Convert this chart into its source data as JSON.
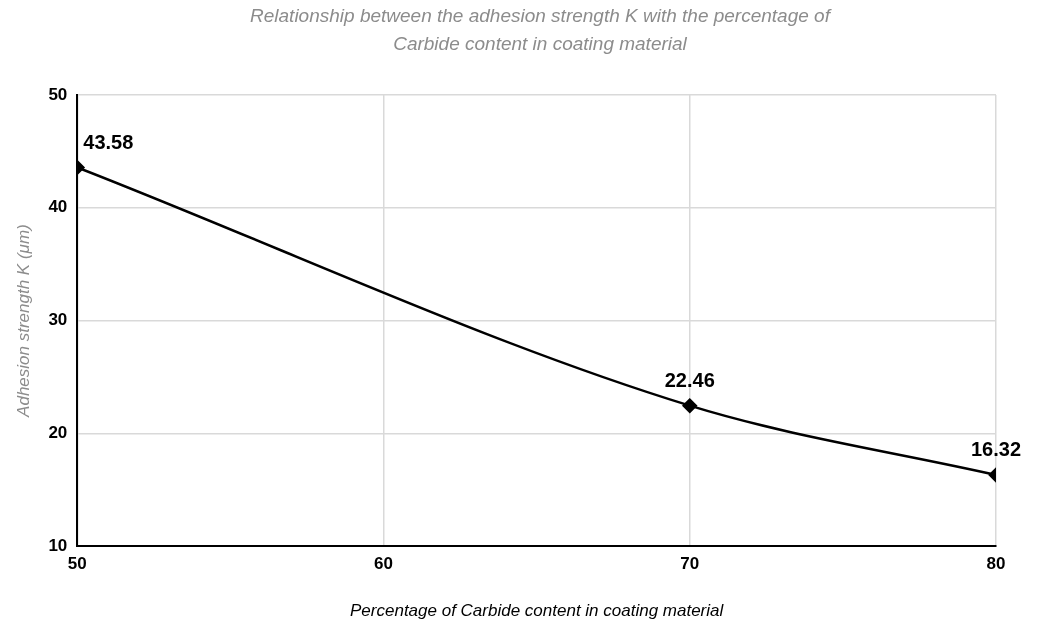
{
  "chart_data": {
    "type": "line",
    "title": "Relationship between the adhesion strength  K with the percentage of Carbide content in coating material",
    "xlabel": "Percentage of Carbide content in coating material",
    "ylabel": "Adhesion strength K (μm)",
    "x": [
      50,
      70,
      80
    ],
    "series": [
      {
        "color": "#000000",
        "values": [
          43.58,
          22.46,
          16.32
        ]
      }
    ],
    "xlim": [
      50,
      80
    ],
    "xticks": [
      50,
      60,
      70,
      80
    ],
    "ylim": [
      10,
      50
    ],
    "yticks": [
      10,
      20,
      30,
      40,
      50
    ],
    "grid": true,
    "legend": false,
    "marker": "diamond",
    "line_style": "solid",
    "data_labels": true
  }
}
